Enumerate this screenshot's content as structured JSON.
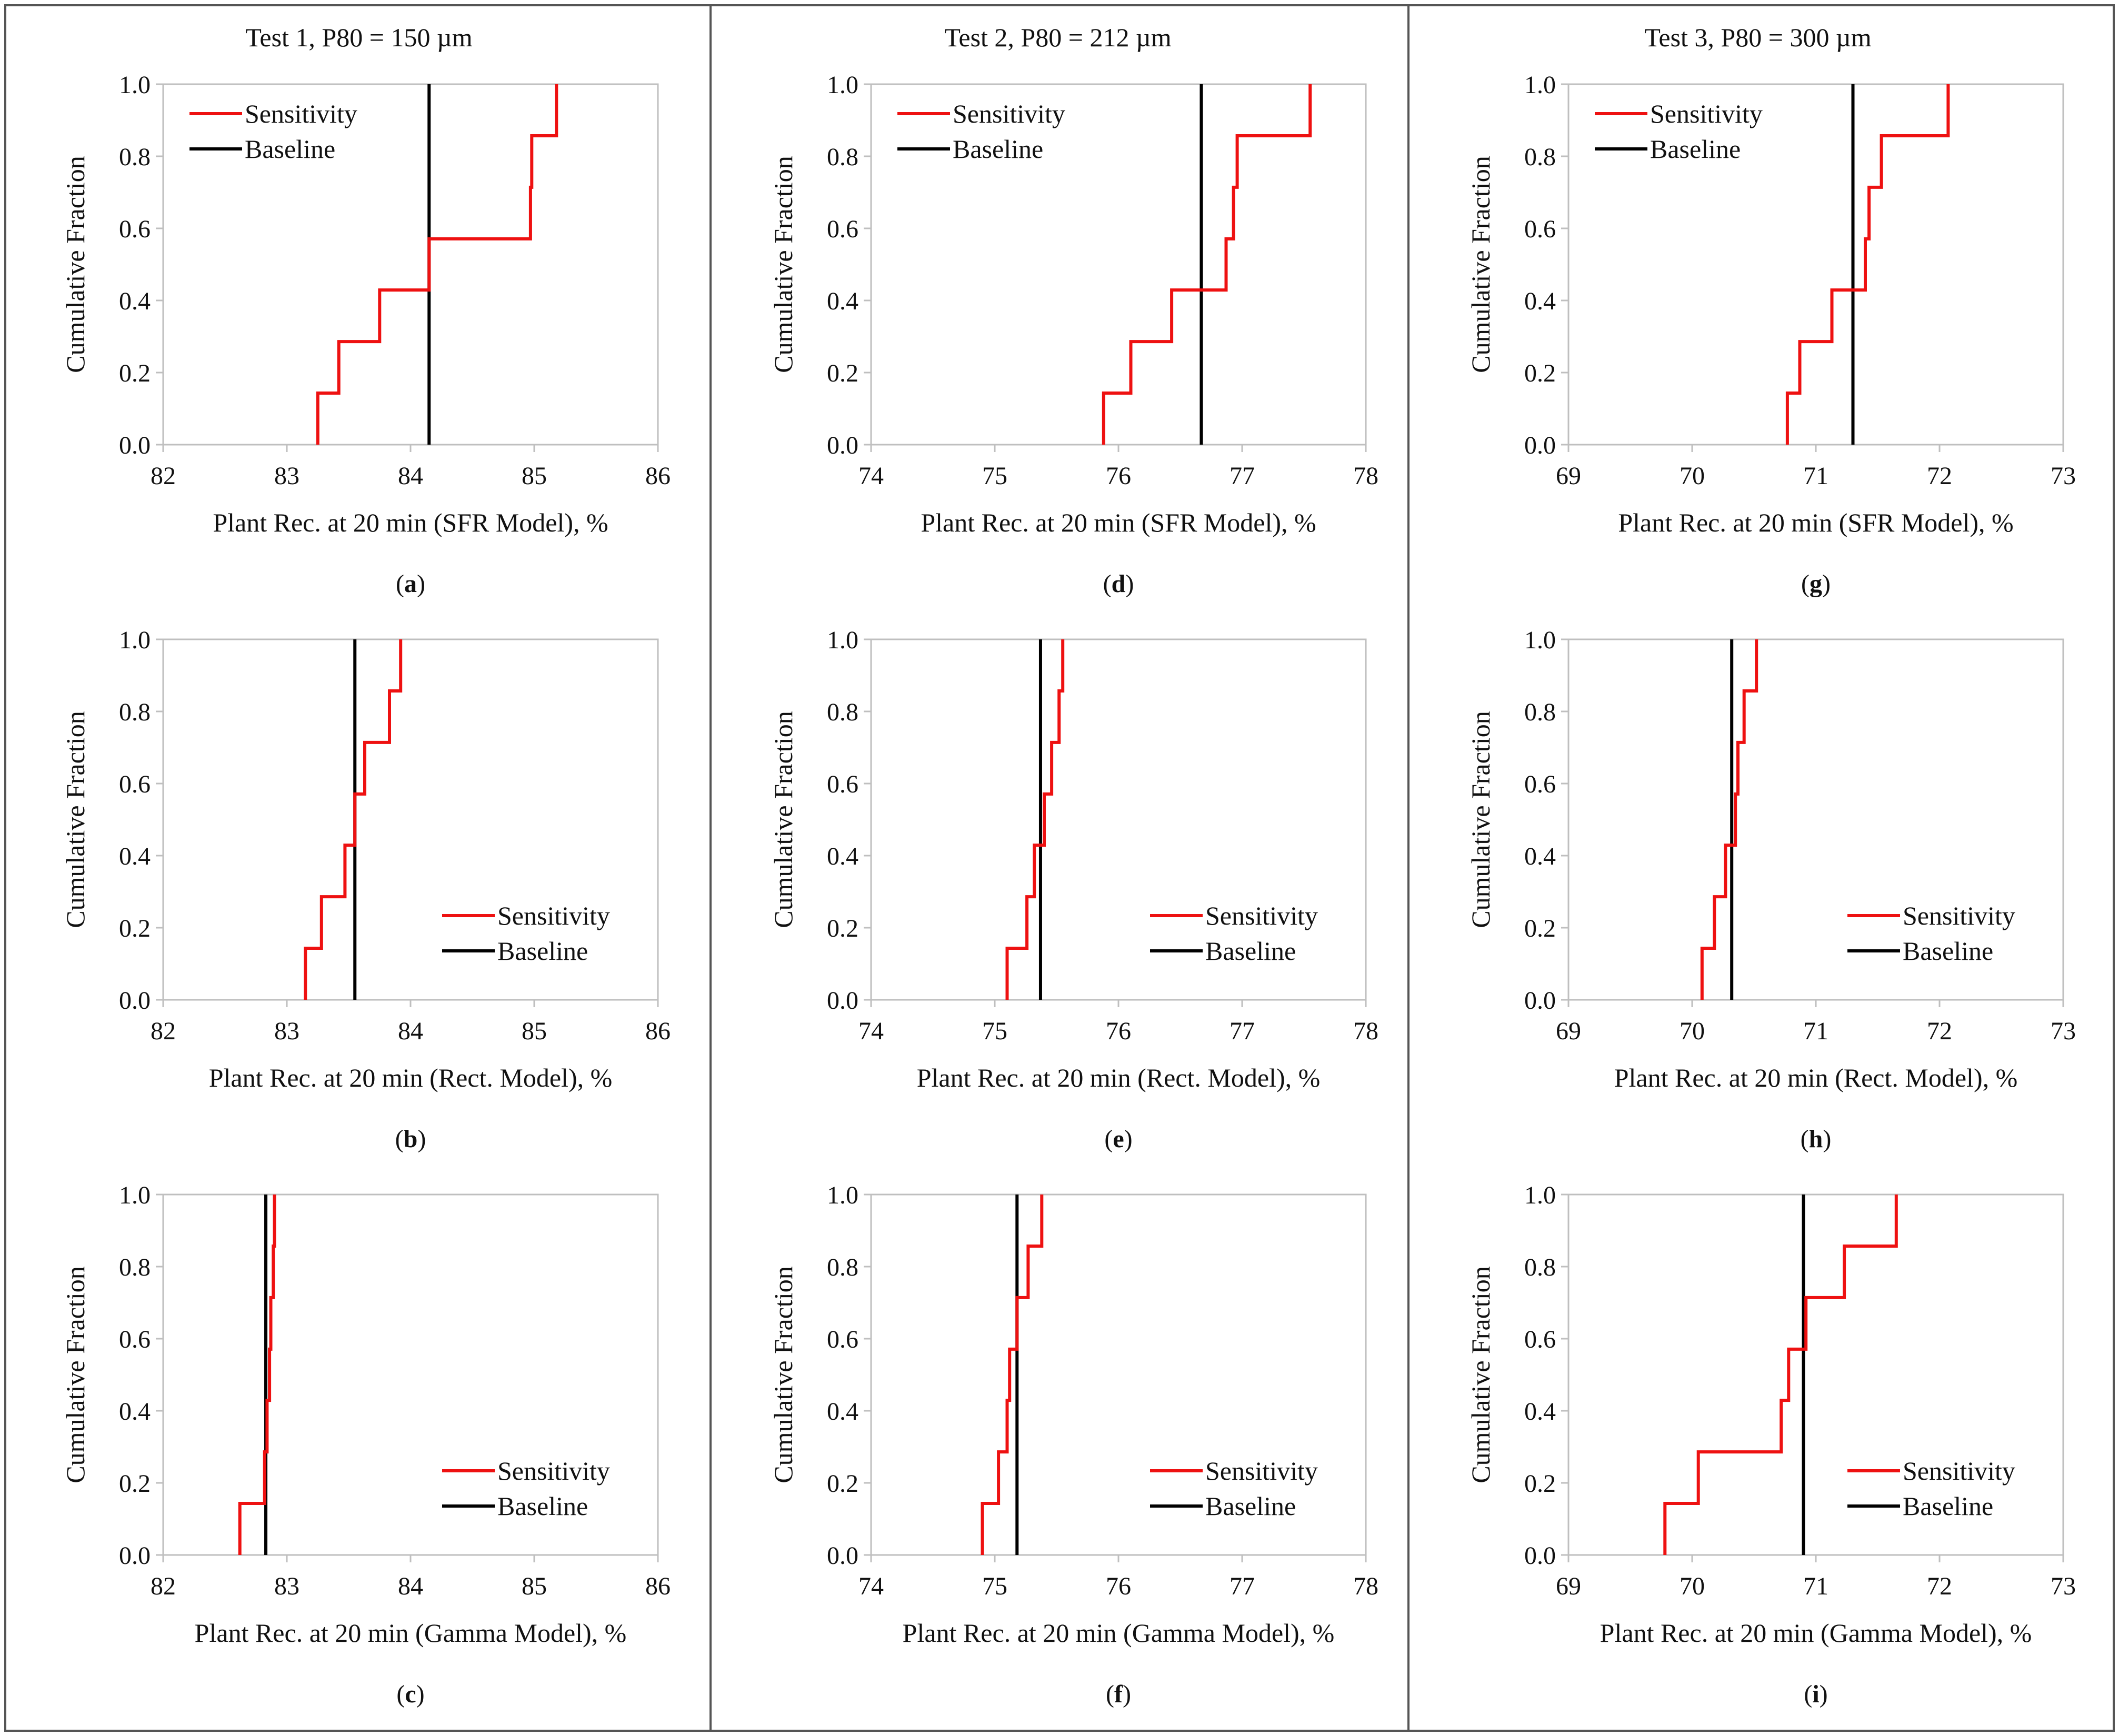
{
  "figure": {
    "columns": [
      {
        "title": "Test 1, P80 = 150 µm"
      },
      {
        "title": "Test 2, P80 = 212 µm"
      },
      {
        "title": "Test 3, P80 = 300 µm"
      }
    ]
  },
  "colors": {
    "sensitivity": "#ee1111",
    "baseline": "#000000",
    "frame": "#555555",
    "axis": "#bfbfbf"
  },
  "chart_data": [
    {
      "id": "a",
      "letter": "a",
      "type": "line",
      "title": "",
      "xlabel": "Plant Rec. at 20 min (SFR Model), %",
      "ylabel": "Cumulative Fraction",
      "xlim": [
        82,
        86
      ],
      "ylim": [
        0,
        1
      ],
      "xticks": [
        "82",
        "83",
        "84",
        "85",
        "86"
      ],
      "yticks": [
        "0.0",
        "0.2",
        "0.4",
        "0.6",
        "0.8",
        "1.0"
      ],
      "legend_position": "top-left",
      "series": [
        {
          "name": "Sensitivity",
          "x": [
            83.25,
            83.42,
            83.75,
            84.15,
            84.97,
            84.98,
            85.18
          ],
          "y": [
            0.143,
            0.286,
            0.429,
            0.571,
            0.714,
            0.857,
            1.0
          ]
        },
        {
          "name": "Baseline",
          "x": [
            84.15
          ],
          "y": [
            1.0
          ]
        }
      ]
    },
    {
      "id": "b",
      "letter": "b",
      "type": "line",
      "title": "",
      "xlabel": "Plant Rec. at 20 min (Rect. Model), %",
      "ylabel": "Cumulative Fraction",
      "xlim": [
        82,
        86
      ],
      "ylim": [
        0,
        1
      ],
      "xticks": [
        "82",
        "83",
        "84",
        "85",
        "86"
      ],
      "yticks": [
        "0.0",
        "0.2",
        "0.4",
        "0.6",
        "0.8",
        "1.0"
      ],
      "legend_position": "bottom-right",
      "series": [
        {
          "name": "Sensitivity",
          "x": [
            83.15,
            83.28,
            83.47,
            83.55,
            83.63,
            83.83,
            83.92
          ],
          "y": [
            0.143,
            0.286,
            0.429,
            0.571,
            0.714,
            0.857,
            1.0
          ]
        },
        {
          "name": "Baseline",
          "x": [
            83.55
          ],
          "y": [
            1.0
          ]
        }
      ]
    },
    {
      "id": "c",
      "letter": "c",
      "type": "line",
      "title": "",
      "xlabel": "Plant Rec. at 20 min (Gamma Model), %",
      "ylabel": "Cumulative Fraction",
      "xlim": [
        82,
        86
      ],
      "ylim": [
        0,
        1
      ],
      "xticks": [
        "82",
        "83",
        "84",
        "85",
        "86"
      ],
      "yticks": [
        "0.0",
        "0.2",
        "0.4",
        "0.6",
        "0.8",
        "1.0"
      ],
      "legend_position": "bottom-right",
      "series": [
        {
          "name": "Sensitivity",
          "x": [
            82.62,
            82.82,
            82.84,
            82.86,
            82.87,
            82.89,
            82.9
          ],
          "y": [
            0.143,
            0.286,
            0.429,
            0.571,
            0.714,
            0.857,
            1.0
          ]
        },
        {
          "name": "Baseline",
          "x": [
            82.83
          ],
          "y": [
            1.0
          ]
        }
      ]
    },
    {
      "id": "d",
      "letter": "d",
      "type": "line",
      "title": "",
      "xlabel": "Plant Rec. at 20 min (SFR Model), %",
      "ylabel": "Cumulative Fraction",
      "xlim": [
        74,
        78
      ],
      "ylim": [
        0,
        1
      ],
      "xticks": [
        "74",
        "75",
        "76",
        "77",
        "78"
      ],
      "yticks": [
        "0.0",
        "0.2",
        "0.4",
        "0.6",
        "0.8",
        "1.0"
      ],
      "legend_position": "top-left",
      "series": [
        {
          "name": "Sensitivity",
          "x": [
            75.88,
            76.1,
            76.43,
            76.87,
            76.93,
            76.96,
            77.55
          ],
          "y": [
            0.143,
            0.286,
            0.429,
            0.571,
            0.714,
            0.857,
            1.0
          ]
        },
        {
          "name": "Baseline",
          "x": [
            76.67
          ],
          "y": [
            1.0
          ]
        }
      ]
    },
    {
      "id": "e",
      "letter": "e",
      "type": "line",
      "title": "",
      "xlabel": "Plant Rec. at 20 min (Rect. Model), %",
      "ylabel": "Cumulative Fraction",
      "xlim": [
        74,
        78
      ],
      "ylim": [
        0,
        1
      ],
      "xticks": [
        "74",
        "75",
        "76",
        "77",
        "78"
      ],
      "yticks": [
        "0.0",
        "0.2",
        "0.4",
        "0.6",
        "0.8",
        "1.0"
      ],
      "legend_position": "bottom-right",
      "series": [
        {
          "name": "Sensitivity",
          "x": [
            75.1,
            75.26,
            75.32,
            75.4,
            75.46,
            75.52,
            75.55
          ],
          "y": [
            0.143,
            0.286,
            0.429,
            0.571,
            0.714,
            0.857,
            1.0
          ]
        },
        {
          "name": "Baseline",
          "x": [
            75.37
          ],
          "y": [
            1.0
          ]
        }
      ]
    },
    {
      "id": "f",
      "letter": "f",
      "type": "line",
      "title": "",
      "xlabel": "Plant Rec. at 20 min (Gamma Model), %",
      "ylabel": "Cumulative Fraction",
      "xlim": [
        74,
        78
      ],
      "ylim": [
        0,
        1
      ],
      "xticks": [
        "74",
        "75",
        "76",
        "77",
        "78"
      ],
      "yticks": [
        "0.0",
        "0.2",
        "0.4",
        "0.6",
        "0.8",
        "1.0"
      ],
      "legend_position": "bottom-right",
      "series": [
        {
          "name": "Sensitivity",
          "x": [
            74.9,
            75.03,
            75.1,
            75.12,
            75.18,
            75.27,
            75.38
          ],
          "y": [
            0.143,
            0.286,
            0.429,
            0.571,
            0.714,
            0.857,
            1.0
          ]
        },
        {
          "name": "Baseline",
          "x": [
            75.18
          ],
          "y": [
            1.0
          ]
        }
      ]
    },
    {
      "id": "g",
      "letter": "g",
      "type": "line",
      "title": "",
      "xlabel": "Plant Rec. at 20 min (SFR Model), %",
      "ylabel": "Cumulative Fraction",
      "xlim": [
        69,
        73
      ],
      "ylim": [
        0,
        1
      ],
      "xticks": [
        "69",
        "70",
        "71",
        "72",
        "73"
      ],
      "yticks": [
        "0.0",
        "0.2",
        "0.4",
        "0.6",
        "0.8",
        "1.0"
      ],
      "legend_position": "top-left",
      "series": [
        {
          "name": "Sensitivity",
          "x": [
            70.77,
            70.87,
            71.13,
            71.4,
            71.43,
            71.53,
            72.07
          ],
          "y": [
            0.143,
            0.286,
            0.429,
            0.571,
            0.714,
            0.857,
            1.0
          ]
        },
        {
          "name": "Baseline",
          "x": [
            71.3
          ],
          "y": [
            1.0
          ]
        }
      ]
    },
    {
      "id": "h",
      "letter": "h",
      "type": "line",
      "title": "",
      "xlabel": "Plant Rec. at 20 min (Rect. Model), %",
      "ylabel": "Cumulative Fraction",
      "xlim": [
        69,
        73
      ],
      "ylim": [
        0,
        1
      ],
      "xticks": [
        "69",
        "70",
        "71",
        "72",
        "73"
      ],
      "yticks": [
        "0.0",
        "0.2",
        "0.4",
        "0.6",
        "0.8",
        "1.0"
      ],
      "legend_position": "bottom-right",
      "series": [
        {
          "name": "Sensitivity",
          "x": [
            70.08,
            70.18,
            70.27,
            70.35,
            70.37,
            70.42,
            70.52
          ],
          "y": [
            0.143,
            0.286,
            0.429,
            0.571,
            0.714,
            0.857,
            1.0
          ]
        },
        {
          "name": "Baseline",
          "x": [
            70.32
          ],
          "y": [
            1.0
          ]
        }
      ]
    },
    {
      "id": "i",
      "letter": "i",
      "type": "line",
      "title": "",
      "xlabel": "Plant Rec. at 20 min (Gamma Model), %",
      "ylabel": "Cumulative Fraction",
      "xlim": [
        69,
        73
      ],
      "ylim": [
        0,
        1
      ],
      "xticks": [
        "69",
        "70",
        "71",
        "72",
        "73"
      ],
      "yticks": [
        "0.0",
        "0.2",
        "0.4",
        "0.6",
        "0.8",
        "1.0"
      ],
      "legend_position": "bottom-right",
      "series": [
        {
          "name": "Sensitivity",
          "x": [
            69.78,
            70.05,
            70.72,
            70.78,
            70.92,
            71.23,
            71.65
          ],
          "y": [
            0.143,
            0.286,
            0.429,
            0.571,
            0.714,
            0.857,
            1.0
          ]
        },
        {
          "name": "Baseline",
          "x": [
            70.9
          ],
          "y": [
            1.0
          ]
        }
      ]
    }
  ]
}
